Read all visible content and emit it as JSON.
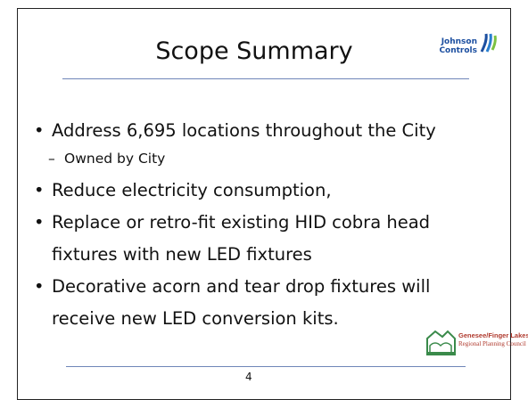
{
  "header": {
    "title": "Scope Summary",
    "logo": [
      "Johnson",
      "Controls"
    ]
  },
  "bullets": [
    {
      "text": "Address 6,695 locations throughout the City",
      "sub": [
        "Owned by City"
      ]
    },
    {
      "text": "Reduce electricity consumption,"
    },
    {
      "text": "Replace or retro-fit existing HID cobra head fixtures with new LED fixtures"
    },
    {
      "text": "Decorative acorn and tear drop fixtures will receive new LED conversion kits."
    }
  ],
  "footer": {
    "logo": [
      "Genesee/Finger Lakes",
      "Regional Planning Council"
    ],
    "page": "4"
  }
}
